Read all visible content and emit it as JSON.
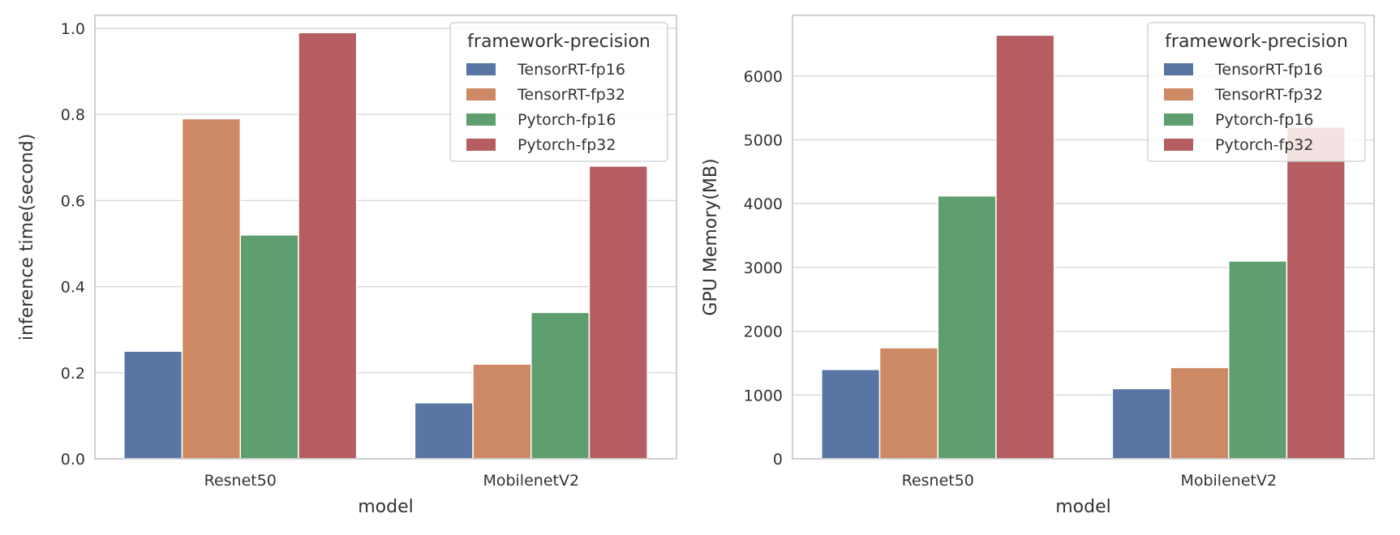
{
  "colors": {
    "TensorRT-fp16": "#5875a4",
    "TensorRT-fp32": "#cc8963",
    "Pytorch-fp16": "#5f9e6e",
    "Pytorch-fp32": "#b55d60",
    "grid": "#d6d6d6",
    "frame": "#cccccc"
  },
  "chart_data": [
    {
      "type": "bar",
      "title": "",
      "xlabel": "model",
      "ylabel": "inference time(second)",
      "categories": [
        "Resnet50",
        "MobilenetV2"
      ],
      "ylim": [
        0,
        1.03
      ],
      "yticks": [
        "0.0",
        "0.2",
        "0.4",
        "0.6",
        "0.8",
        "1.0"
      ],
      "legend": {
        "title": "framework-precision",
        "position": "top-right"
      },
      "grid": true,
      "series": [
        {
          "name": "TensorRT-fp16",
          "values": [
            0.25,
            0.13
          ]
        },
        {
          "name": "TensorRT-fp32",
          "values": [
            0.79,
            0.22
          ]
        },
        {
          "name": "Pytorch-fp16",
          "values": [
            0.52,
            0.34
          ]
        },
        {
          "name": "Pytorch-fp32",
          "values": [
            0.99,
            0.68
          ]
        }
      ]
    },
    {
      "type": "bar",
      "title": "",
      "xlabel": "model",
      "ylabel": "GPU Memory(MB)",
      "categories": [
        "Resnet50",
        "MobilenetV2"
      ],
      "ylim": [
        0,
        6950
      ],
      "yticks": [
        "0",
        "1000",
        "2000",
        "3000",
        "4000",
        "5000",
        "6000"
      ],
      "legend": {
        "title": "framework-precision",
        "position": "top-right"
      },
      "grid": true,
      "series": [
        {
          "name": "TensorRT-fp16",
          "values": [
            1400,
            1100
          ]
        },
        {
          "name": "TensorRT-fp32",
          "values": [
            1740,
            1430
          ]
        },
        {
          "name": "Pytorch-fp16",
          "values": [
            4120,
            3100
          ]
        },
        {
          "name": "Pytorch-fp32",
          "values": [
            6640,
            5200
          ]
        }
      ]
    }
  ]
}
